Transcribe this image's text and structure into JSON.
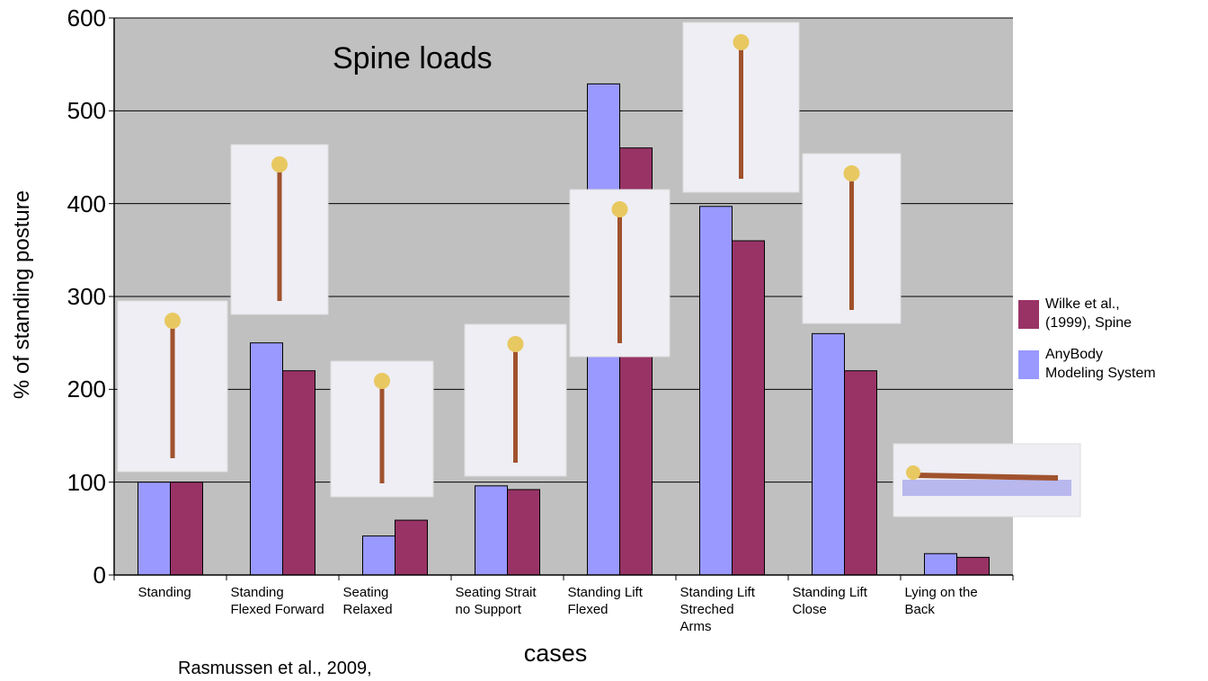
{
  "chart_data": {
    "type": "bar",
    "title": "Spine loads",
    "ylabel": "% of standing posture",
    "xlabel": "cases",
    "annotation": "Rasmussen et al., 2009,",
    "categories": [
      "Standing",
      "Standing\nFlexed Forward",
      "Seating\nRelaxed",
      "Seating Strait\nno Support",
      "Standing Lift\nFlexed",
      "Standing Lift\nStreched\nArms",
      "Standing Lift\nClose",
      "Lying on the\nBack"
    ],
    "series": [
      {
        "name": "Wilke et al.,\n(1999), Spine",
        "color": "#993366",
        "values": [
          100,
          220,
          59,
          92,
          460,
          360,
          220,
          19
        ]
      },
      {
        "name": "AnyBody\nModeling System",
        "color": "#9999ff",
        "values": [
          100,
          250,
          42,
          96,
          529,
          397,
          260,
          23
        ]
      }
    ],
    "ylim": [
      0,
      600
    ],
    "yticks": [
      0,
      100,
      200,
      300,
      400,
      500,
      600
    ],
    "grid": true,
    "legend": "right"
  }
}
